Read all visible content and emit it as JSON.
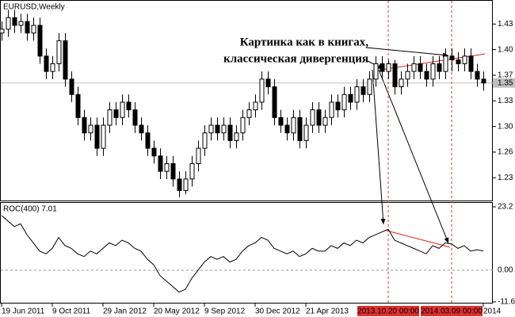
{
  "chart_data": {
    "type": "candlestick",
    "title": "EURUSD,Weekly",
    "categories": [
      "19 Jun 2011",
      null,
      null,
      null,
      null,
      null,
      null,
      null,
      "9 Oct 2011",
      null,
      null,
      null,
      null,
      null,
      null,
      null,
      "29 Jan 2012",
      null,
      null,
      null,
      null,
      null,
      null,
      null,
      "20 May 2012",
      null,
      null,
      null,
      null,
      null,
      null,
      null,
      "9 Sep 2012",
      null,
      null,
      null,
      null,
      null,
      null,
      null,
      "30 Dec 2012",
      null,
      null,
      null,
      null,
      null,
      null,
      null,
      "21 Apr 2013",
      null,
      null,
      null,
      null,
      null,
      null,
      null,
      null,
      null,
      null,
      null,
      null,
      "2013.10.20 00:00",
      null,
      null,
      null,
      null,
      null,
      null,
      null,
      null,
      null,
      "2014.03.09 00:00",
      null,
      null,
      null,
      null,
      "2014"
    ],
    "highlight_indices": [
      61,
      71
    ],
    "highlight_color": "#e03030",
    "open": [
      1.42,
      1.425,
      1.44,
      1.43,
      1.435,
      1.42,
      1.43,
      1.39,
      1.37,
      1.38,
      1.41,
      1.36,
      1.34,
      1.31,
      1.29,
      1.3,
      1.27,
      1.3,
      1.32,
      1.31,
      1.33,
      1.32,
      1.3,
      1.29,
      1.27,
      1.26,
      1.24,
      1.25,
      1.23,
      1.215,
      1.23,
      1.25,
      1.27,
      1.29,
      1.3,
      1.29,
      1.3,
      1.28,
      1.29,
      1.31,
      1.32,
      1.33,
      1.36,
      1.35,
      1.31,
      1.3,
      1.29,
      1.31,
      1.28,
      1.3,
      1.32,
      1.3,
      1.31,
      1.33,
      1.32,
      1.34,
      1.33,
      1.35,
      1.34,
      1.36,
      1.38,
      1.37,
      1.38,
      1.35,
      1.36,
      1.37,
      1.38,
      1.37,
      1.36,
      1.38,
      1.37,
      1.39,
      1.385,
      1.38,
      1.39,
      1.37,
      1.36
    ],
    "high": [
      1.435,
      1.45,
      1.45,
      1.445,
      1.445,
      1.44,
      1.44,
      1.4,
      1.39,
      1.42,
      1.42,
      1.37,
      1.35,
      1.32,
      1.31,
      1.31,
      1.31,
      1.33,
      1.33,
      1.34,
      1.34,
      1.33,
      1.31,
      1.3,
      1.28,
      1.27,
      1.26,
      1.26,
      1.24,
      1.24,
      1.26,
      1.28,
      1.3,
      1.31,
      1.31,
      1.31,
      1.31,
      1.3,
      1.32,
      1.33,
      1.34,
      1.37,
      1.37,
      1.36,
      1.32,
      1.31,
      1.32,
      1.32,
      1.31,
      1.33,
      1.33,
      1.32,
      1.34,
      1.34,
      1.35,
      1.35,
      1.36,
      1.36,
      1.37,
      1.39,
      1.39,
      1.385,
      1.385,
      1.37,
      1.38,
      1.39,
      1.39,
      1.38,
      1.39,
      1.39,
      1.4,
      1.4,
      1.395,
      1.4,
      1.4,
      1.38,
      1.37
    ],
    "low": [
      1.41,
      1.415,
      1.42,
      1.42,
      1.41,
      1.41,
      1.38,
      1.36,
      1.36,
      1.37,
      1.35,
      1.33,
      1.3,
      1.28,
      1.28,
      1.26,
      1.26,
      1.29,
      1.3,
      1.3,
      1.31,
      1.29,
      1.28,
      1.26,
      1.25,
      1.23,
      1.23,
      1.22,
      1.206,
      1.21,
      1.22,
      1.24,
      1.26,
      1.28,
      1.28,
      1.28,
      1.27,
      1.27,
      1.28,
      1.3,
      1.31,
      1.32,
      1.34,
      1.3,
      1.29,
      1.28,
      1.28,
      1.27,
      1.27,
      1.29,
      1.29,
      1.29,
      1.3,
      1.31,
      1.31,
      1.32,
      1.32,
      1.33,
      1.33,
      1.35,
      1.36,
      1.36,
      1.34,
      1.34,
      1.35,
      1.36,
      1.36,
      1.35,
      1.35,
      1.36,
      1.36,
      1.37,
      1.37,
      1.37,
      1.36,
      1.35,
      1.345
    ],
    "close": [
      1.425,
      1.44,
      1.43,
      1.435,
      1.42,
      1.43,
      1.39,
      1.37,
      1.38,
      1.41,
      1.36,
      1.34,
      1.31,
      1.29,
      1.3,
      1.27,
      1.3,
      1.32,
      1.31,
      1.33,
      1.32,
      1.3,
      1.29,
      1.27,
      1.26,
      1.24,
      1.25,
      1.23,
      1.215,
      1.23,
      1.25,
      1.27,
      1.29,
      1.3,
      1.29,
      1.3,
      1.28,
      1.29,
      1.31,
      1.32,
      1.33,
      1.36,
      1.35,
      1.31,
      1.3,
      1.29,
      1.31,
      1.28,
      1.3,
      1.32,
      1.3,
      1.31,
      1.33,
      1.32,
      1.34,
      1.33,
      1.35,
      1.34,
      1.36,
      1.38,
      1.37,
      1.38,
      1.35,
      1.36,
      1.37,
      1.38,
      1.37,
      1.36,
      1.38,
      1.37,
      1.39,
      1.385,
      1.38,
      1.39,
      1.37,
      1.36,
      1.355
    ],
    "ylim": [
      1.202,
      1.463
    ],
    "yticks": [
      {
        "value": 1.4317,
        "label": "1.43"
      },
      {
        "value": 1.3984,
        "label": "1.40"
      },
      {
        "value": 1.365,
        "label": "1.37"
      },
      {
        "value": 1.3317,
        "label": "1.33"
      },
      {
        "value": 1.2983,
        "label": "1.30"
      },
      {
        "value": 1.265,
        "label": "1.26"
      },
      {
        "value": 1.2317,
        "label": "1.23"
      }
    ],
    "current": {
      "value": 1.355,
      "label": "1.35"
    },
    "annotation": [
      "Картинка как в книгах,",
      "классическая дивергенция"
    ],
    "indicator": {
      "type": "line",
      "title": "ROC(400) 7.01",
      "values": [
        20,
        18,
        16,
        17,
        13,
        10,
        7,
        6,
        8,
        12,
        9,
        8,
        6,
        5,
        7,
        6,
        8,
        10,
        9,
        11,
        10,
        8,
        7,
        4,
        2,
        -2,
        -4,
        -6,
        -8,
        -7,
        -3,
        0,
        3,
        5,
        4,
        5,
        3,
        4,
        7,
        9,
        10,
        12,
        11,
        8,
        7,
        6,
        7,
        5,
        6,
        8,
        7,
        7,
        9,
        8,
        10,
        9,
        11,
        10,
        12,
        13,
        14,
        15,
        11,
        10,
        9,
        8,
        7,
        6,
        9,
        8,
        10,
        9.6,
        8,
        9,
        7,
        7.5,
        7.01
      ],
      "ylim": [
        -12.2,
        24.65
      ],
      "yticks": [
        23.2,
        {
          "value": 0,
          "label": "0.00"
        },
        -11.6
      ]
    }
  }
}
